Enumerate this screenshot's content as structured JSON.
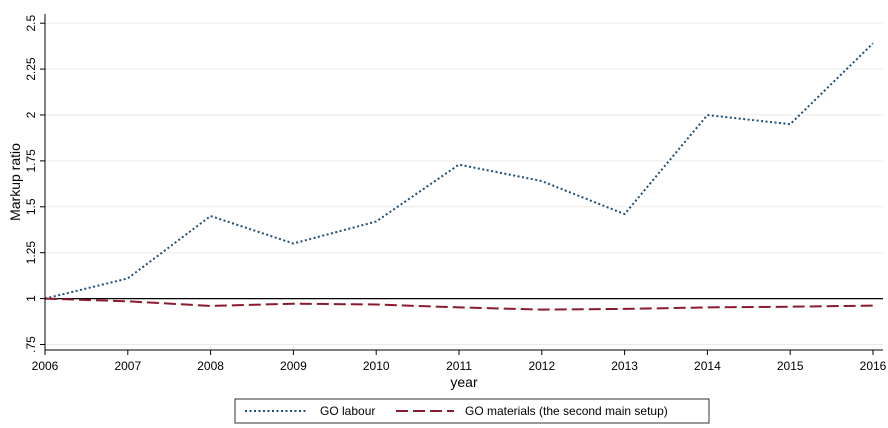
{
  "chart_data": {
    "type": "line",
    "title": "",
    "xlabel": "year",
    "ylabel": "Markup ratio",
    "x": [
      2006,
      2007,
      2008,
      2009,
      2010,
      2011,
      2012,
      2013,
      2014,
      2015,
      2016
    ],
    "xticks": [
      "2006",
      "2007",
      "2008",
      "2009",
      "2010",
      "2011",
      "2012",
      "2013",
      "2014",
      "2015",
      "2016"
    ],
    "yticks": [
      0.75,
      1,
      1.25,
      1.5,
      1.75,
      2,
      2.25,
      2.5
    ],
    "ytick_labels": [
      ".75",
      "1",
      "1.25",
      "1.5",
      "1.75",
      "2",
      "2.25",
      "2.5"
    ],
    "xlim": [
      2006,
      2016
    ],
    "ylim": [
      0.72,
      2.55
    ],
    "reference_line": 1,
    "grid": true,
    "legend_position": "bottom",
    "series": [
      {
        "name": "GO labour",
        "color": "#1f4e79",
        "style": "dotted",
        "values": [
          1.0,
          1.11,
          1.45,
          1.3,
          1.42,
          1.73,
          1.64,
          1.46,
          2.0,
          1.95,
          2.39
        ]
      },
      {
        "name": "GO materials (the second main setup)",
        "color": "#8b1a2e",
        "style": "dashed",
        "values": [
          1.0,
          0.985,
          0.96,
          0.972,
          0.968,
          0.952,
          0.94,
          0.944,
          0.952,
          0.956,
          0.962
        ]
      }
    ]
  }
}
